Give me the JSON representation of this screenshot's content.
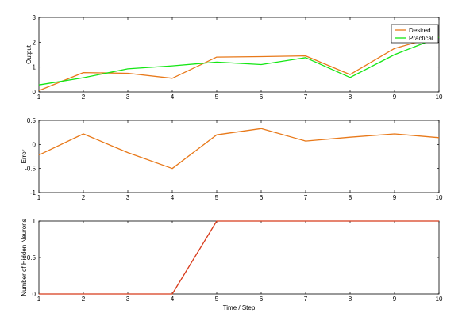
{
  "chart_data": [
    {
      "type": "line",
      "title": "",
      "xlabel": "",
      "ylabel": "Output",
      "xlim": [
        1,
        10
      ],
      "ylim": [
        0,
        3
      ],
      "x": [
        1,
        2,
        3,
        4,
        5,
        6,
        7,
        8,
        9,
        10
      ],
      "xticks": [
        "1",
        "2",
        "3",
        "4",
        "5",
        "6",
        "7",
        "8",
        "9",
        "10"
      ],
      "yticks": [
        "0",
        "1",
        "2",
        "3"
      ],
      "legend": "top-right",
      "series": [
        {
          "name": "Desired",
          "color": "#e8791a",
          "values": [
            0.05,
            0.78,
            0.75,
            0.55,
            1.4,
            1.42,
            1.45,
            0.7,
            1.75,
            2.25
          ]
        },
        {
          "name": "Practical",
          "color": "#14e614",
          "values": [
            0.28,
            0.57,
            0.93,
            1.05,
            1.2,
            1.1,
            1.38,
            0.58,
            1.5,
            2.2
          ]
        }
      ]
    },
    {
      "type": "line",
      "title": "",
      "xlabel": "",
      "ylabel": "Error",
      "xlim": [
        1,
        10
      ],
      "ylim": [
        -1,
        0.5
      ],
      "x": [
        1,
        2,
        3,
        4,
        5,
        6,
        7,
        8,
        9,
        10
      ],
      "xticks": [
        "1",
        "2",
        "3",
        "4",
        "5",
        "6",
        "7",
        "8",
        "9",
        "10"
      ],
      "yticks": [
        "-1",
        "-0.5",
        "0",
        "0.5"
      ],
      "series": [
        {
          "color": "#e8791a",
          "values": [
            -0.22,
            0.22,
            -0.17,
            -0.5,
            0.2,
            0.33,
            0.07,
            0.15,
            0.22,
            0.14
          ]
        }
      ]
    },
    {
      "type": "line",
      "title": "",
      "xlabel": "Time / Step",
      "ylabel": "Number of Hidden Neurons",
      "xlim": [
        1,
        10
      ],
      "ylim": [
        0,
        1
      ],
      "x": [
        1,
        2,
        3,
        4,
        5,
        6,
        7,
        8,
        9,
        10
      ],
      "xticks": [
        "1",
        "2",
        "3",
        "4",
        "5",
        "6",
        "7",
        "8",
        "9",
        "10"
      ],
      "yticks": [
        "0",
        "0.5",
        "1"
      ],
      "series": [
        {
          "color": "#d83a1a",
          "values": [
            0,
            0,
            0,
            0,
            1,
            1,
            1,
            1,
            1,
            1
          ]
        }
      ]
    }
  ]
}
